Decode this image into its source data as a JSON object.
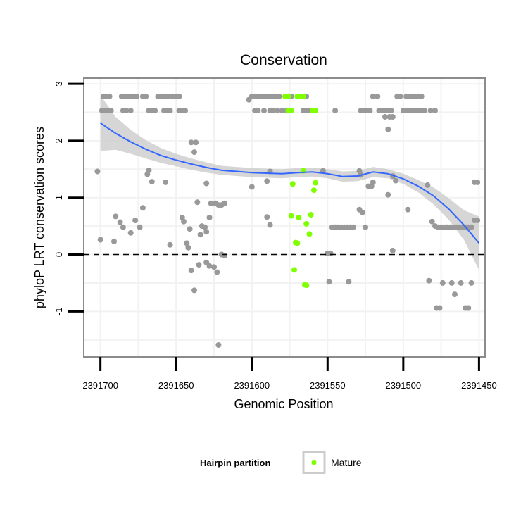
{
  "chart_data": {
    "type": "scatter",
    "title": "Conservation",
    "xlabel": "Genomic Position",
    "ylabel": "phyloP LRT conservation scores",
    "x_reversed": true,
    "xlim": [
      2391711,
      2391446
    ],
    "ylim": [
      -1.8,
      3.1
    ],
    "x_ticks": [
      2391700,
      2391650,
      2391600,
      2391550,
      2391500,
      2391450
    ],
    "x_tick_labels": [
      "2391700",
      "2391650",
      "2391600",
      "2391550",
      "2391500",
      "2391450"
    ],
    "y_ticks": [
      -1,
      0,
      1,
      2,
      3
    ],
    "y_tick_labels": [
      "-1",
      "0",
      "1",
      "2",
      "3"
    ],
    "grid": true,
    "reference_line": {
      "y": 0,
      "style": "dashed"
    },
    "legend": {
      "title": "Hairpin partition",
      "position": "bottom",
      "entries": [
        {
          "label": "Mature",
          "color": "#7fff00"
        }
      ]
    },
    "colors": {
      "other": "#999999",
      "mature": "#7fff00",
      "smooth": "#3366ff",
      "band": "#cfcfcf",
      "panel_border": "#8c8c8c",
      "grid": "#f2f2f2"
    },
    "series": [
      {
        "color": "#999999",
        "points": [
          [
            2391699,
            2.53
          ],
          [
            2391697,
            2.53
          ],
          [
            2391695,
            2.53
          ],
          [
            2391693,
            2.53
          ],
          [
            2391698,
            2.78
          ],
          [
            2391696,
            2.78
          ],
          [
            2391694,
            2.78
          ],
          [
            2391686,
            2.78
          ],
          [
            2391684,
            2.78
          ],
          [
            2391682,
            2.78
          ],
          [
            2391680,
            2.78
          ],
          [
            2391678,
            2.78
          ],
          [
            2391676,
            2.78
          ],
          [
            2391672,
            2.78
          ],
          [
            2391670,
            2.78
          ],
          [
            2391662,
            2.78
          ],
          [
            2391660,
            2.78
          ],
          [
            2391658,
            2.78
          ],
          [
            2391656,
            2.78
          ],
          [
            2391654,
            2.78
          ],
          [
            2391652,
            2.78
          ],
          [
            2391650,
            2.78
          ],
          [
            2391648,
            2.78
          ],
          [
            2391685,
            2.53
          ],
          [
            2391683,
            2.53
          ],
          [
            2391680,
            2.53
          ],
          [
            2391668,
            2.53
          ],
          [
            2391666,
            2.53
          ],
          [
            2391664,
            2.53
          ],
          [
            2391658,
            2.53
          ],
          [
            2391656,
            2.53
          ],
          [
            2391654,
            2.53
          ],
          [
            2391648,
            2.53
          ],
          [
            2391646,
            2.53
          ],
          [
            2391644,
            2.53
          ],
          [
            2391602,
            2.72
          ],
          [
            2391600,
            2.78
          ],
          [
            2391598,
            2.78
          ],
          [
            2391596,
            2.78
          ],
          [
            2391594,
            2.78
          ],
          [
            2391592,
            2.78
          ],
          [
            2391590,
            2.78
          ],
          [
            2391588,
            2.78
          ],
          [
            2391586,
            2.78
          ],
          [
            2391584,
            2.78
          ],
          [
            2391582,
            2.78
          ],
          [
            2391578,
            2.78
          ],
          [
            2391576,
            2.78
          ],
          [
            2391574,
            2.78
          ],
          [
            2391566,
            2.78
          ],
          [
            2391564,
            2.78
          ],
          [
            2391598,
            2.53
          ],
          [
            2391596,
            2.53
          ],
          [
            2391592,
            2.53
          ],
          [
            2391588,
            2.53
          ],
          [
            2391586,
            2.53
          ],
          [
            2391583,
            2.53
          ],
          [
            2391580,
            2.53
          ],
          [
            2391577,
            2.53
          ],
          [
            2391566,
            2.53
          ],
          [
            2391564,
            2.53
          ],
          [
            2391562,
            2.53
          ],
          [
            2391545,
            2.53
          ],
          [
            2391528,
            2.53
          ],
          [
            2391526,
            2.53
          ],
          [
            2391524,
            2.53
          ],
          [
            2391522,
            2.53
          ],
          [
            2391516,
            2.53
          ],
          [
            2391514,
            2.53
          ],
          [
            2391512,
            2.53
          ],
          [
            2391510,
            2.53
          ],
          [
            2391508,
            2.53
          ],
          [
            2391520,
            2.78
          ],
          [
            2391517,
            2.78
          ],
          [
            2391512,
            2.42
          ],
          [
            2391509,
            2.42
          ],
          [
            2391507,
            2.42
          ],
          [
            2391504,
            2.78
          ],
          [
            2391502,
            2.78
          ],
          [
            2391498,
            2.78
          ],
          [
            2391496,
            2.78
          ],
          [
            2391494,
            2.78
          ],
          [
            2391492,
            2.78
          ],
          [
            2391490,
            2.78
          ],
          [
            2391488,
            2.78
          ],
          [
            2391500,
            2.53
          ],
          [
            2391498,
            2.53
          ],
          [
            2391496,
            2.53
          ],
          [
            2391494,
            2.53
          ],
          [
            2391492,
            2.53
          ],
          [
            2391490,
            2.53
          ],
          [
            2391488,
            2.53
          ],
          [
            2391486,
            2.53
          ],
          [
            2391482,
            2.53
          ],
          [
            2391479,
            2.53
          ],
          [
            2391510,
            2.2
          ],
          [
            2391702,
            1.46
          ],
          [
            2391668,
            1.48
          ],
          [
            2391669,
            1.41
          ],
          [
            2391666,
            1.28
          ],
          [
            2391657,
            1.27
          ],
          [
            2391630,
            1.25
          ],
          [
            2391640,
            1.97
          ],
          [
            2391637,
            1.97
          ],
          [
            2391638,
            1.8
          ],
          [
            2391636,
            0.92
          ],
          [
            2391633,
            0.5
          ],
          [
            2391631,
            0.48
          ],
          [
            2391630,
            0.4
          ],
          [
            2391634,
            0.35
          ],
          [
            2391627,
            0.9
          ],
          [
            2391624,
            0.9
          ],
          [
            2391622,
            0.87
          ],
          [
            2391620,
            0.87
          ],
          [
            2391618,
            0.9
          ],
          [
            2391628,
            0.65
          ],
          [
            2391690,
            0.67
          ],
          [
            2391687,
            0.57
          ],
          [
            2391685,
            0.48
          ],
          [
            2391680,
            0.38
          ],
          [
            2391677,
            0.6
          ],
          [
            2391674,
            0.48
          ],
          [
            2391672,
            0.82
          ],
          [
            2391700,
            0.26
          ],
          [
            2391691,
            0.23
          ],
          [
            2391654,
            0.17
          ],
          [
            2391646,
            0.65
          ],
          [
            2391645,
            0.58
          ],
          [
            2391643,
            0.2
          ],
          [
            2391642,
            0.12
          ],
          [
            2391641,
            0.45
          ],
          [
            2391635,
            -0.18
          ],
          [
            2391630,
            -0.14
          ],
          [
            2391628,
            -0.2
          ],
          [
            2391625,
            -0.22
          ],
          [
            2391623,
            -0.31
          ],
          [
            2391620,
            -0.0
          ],
          [
            2391618,
            -0.02
          ],
          [
            2391640,
            -0.28
          ],
          [
            2391638,
            -0.63
          ],
          [
            2391622,
            -1.59
          ],
          [
            2391600,
            1.19
          ],
          [
            2391590,
            1.29
          ],
          [
            2391588,
            1.46
          ],
          [
            2391590,
            0.66
          ],
          [
            2391588,
            0.52
          ],
          [
            2391553,
            1.47
          ],
          [
            2391550,
            0.02
          ],
          [
            2391548,
            0.02
          ],
          [
            2391549,
            -0.48
          ],
          [
            2391547,
            0.48
          ],
          [
            2391545,
            0.48
          ],
          [
            2391543,
            0.48
          ],
          [
            2391541,
            0.48
          ],
          [
            2391539,
            0.48
          ],
          [
            2391537,
            0.48
          ],
          [
            2391535,
            0.48
          ],
          [
            2391533,
            0.48
          ],
          [
            2391536,
            -0.48
          ],
          [
            2391529,
            1.47
          ],
          [
            2391528,
            1.4
          ],
          [
            2391529,
            0.79
          ],
          [
            2391527,
            0.74
          ],
          [
            2391525,
            0.48
          ],
          [
            2391523,
            1.2
          ],
          [
            2391521,
            1.2
          ],
          [
            2391520,
            1.27
          ],
          [
            2391510,
            1.05
          ],
          [
            2391507,
            1.38
          ],
          [
            2391505,
            1.3
          ],
          [
            2391507,
            0.07
          ],
          [
            2391497,
            0.79
          ],
          [
            2391484,
            1.22
          ],
          [
            2391483,
            -0.46
          ],
          [
            2391481,
            0.58
          ],
          [
            2391479,
            0.5
          ],
          [
            2391477,
            0.48
          ],
          [
            2391475,
            0.48
          ],
          [
            2391473,
            0.48
          ],
          [
            2391471,
            0.48
          ],
          [
            2391469,
            0.48
          ],
          [
            2391467,
            0.48
          ],
          [
            2391465,
            0.48
          ],
          [
            2391463,
            0.48
          ],
          [
            2391461,
            0.48
          ],
          [
            2391459,
            0.48
          ],
          [
            2391457,
            0.48
          ],
          [
            2391455,
            0.48
          ],
          [
            2391478,
            -0.94
          ],
          [
            2391476,
            -0.94
          ],
          [
            2391474,
            -0.5
          ],
          [
            2391468,
            -0.5
          ],
          [
            2391466,
            -0.7
          ],
          [
            2391462,
            -0.5
          ],
          [
            2391459,
            -0.94
          ],
          [
            2391457,
            -0.94
          ],
          [
            2391455,
            -0.5
          ],
          [
            2391453,
            0.6
          ],
          [
            2391451,
            0.6
          ],
          [
            2391453,
            1.27
          ],
          [
            2391451,
            1.27
          ]
        ]
      },
      {
        "name": "Mature",
        "color": "#7fff00",
        "points": [
          [
            2391578,
            2.78
          ],
          [
            2391576,
            2.78
          ],
          [
            2391570,
            2.78
          ],
          [
            2391568,
            2.78
          ],
          [
            2391566,
            2.78
          ],
          [
            2391576,
            2.53
          ],
          [
            2391574,
            2.53
          ],
          [
            2391560,
            2.53
          ],
          [
            2391558,
            2.53
          ],
          [
            2391566,
            1.47
          ],
          [
            2391573,
            1.24
          ],
          [
            2391558,
            1.26
          ],
          [
            2391559,
            1.13
          ],
          [
            2391574,
            0.68
          ],
          [
            2391569,
            0.65
          ],
          [
            2391561,
            0.7
          ],
          [
            2391564,
            0.54
          ],
          [
            2391562,
            0.36
          ],
          [
            2391571,
            0.21
          ],
          [
            2391570,
            0.2
          ],
          [
            2391572,
            -0.27
          ],
          [
            2391565,
            -0.53
          ],
          [
            2391564,
            -0.54
          ]
        ]
      }
    ],
    "smooth": {
      "color": "#3366ff",
      "x": [
        2391700,
        2391690,
        2391680,
        2391670,
        2391660,
        2391650,
        2391640,
        2391630,
        2391620,
        2391610,
        2391600,
        2391590,
        2391580,
        2391570,
        2391560,
        2391550,
        2391540,
        2391530,
        2391520,
        2391510,
        2391500,
        2391490,
        2391480,
        2391470,
        2391460,
        2391450
      ],
      "y": [
        2.31,
        2.13,
        1.98,
        1.85,
        1.74,
        1.66,
        1.59,
        1.53,
        1.48,
        1.46,
        1.44,
        1.43,
        1.42,
        1.44,
        1.45,
        1.42,
        1.37,
        1.38,
        1.45,
        1.42,
        1.33,
        1.2,
        1.03,
        0.8,
        0.52,
        0.2
      ],
      "lower": [
        1.82,
        1.84,
        1.77,
        1.69,
        1.61,
        1.55,
        1.49,
        1.44,
        1.4,
        1.38,
        1.36,
        1.35,
        1.34,
        1.36,
        1.37,
        1.34,
        1.28,
        1.29,
        1.36,
        1.34,
        1.24,
        1.09,
        0.88,
        0.61,
        0.26,
        -0.27
      ],
      "upper": [
        2.8,
        2.42,
        2.19,
        2.01,
        1.87,
        1.77,
        1.69,
        1.62,
        1.56,
        1.54,
        1.52,
        1.51,
        1.5,
        1.52,
        1.53,
        1.5,
        1.46,
        1.47,
        1.54,
        1.5,
        1.42,
        1.31,
        1.18,
        0.99,
        0.78,
        0.67
      ]
    }
  }
}
